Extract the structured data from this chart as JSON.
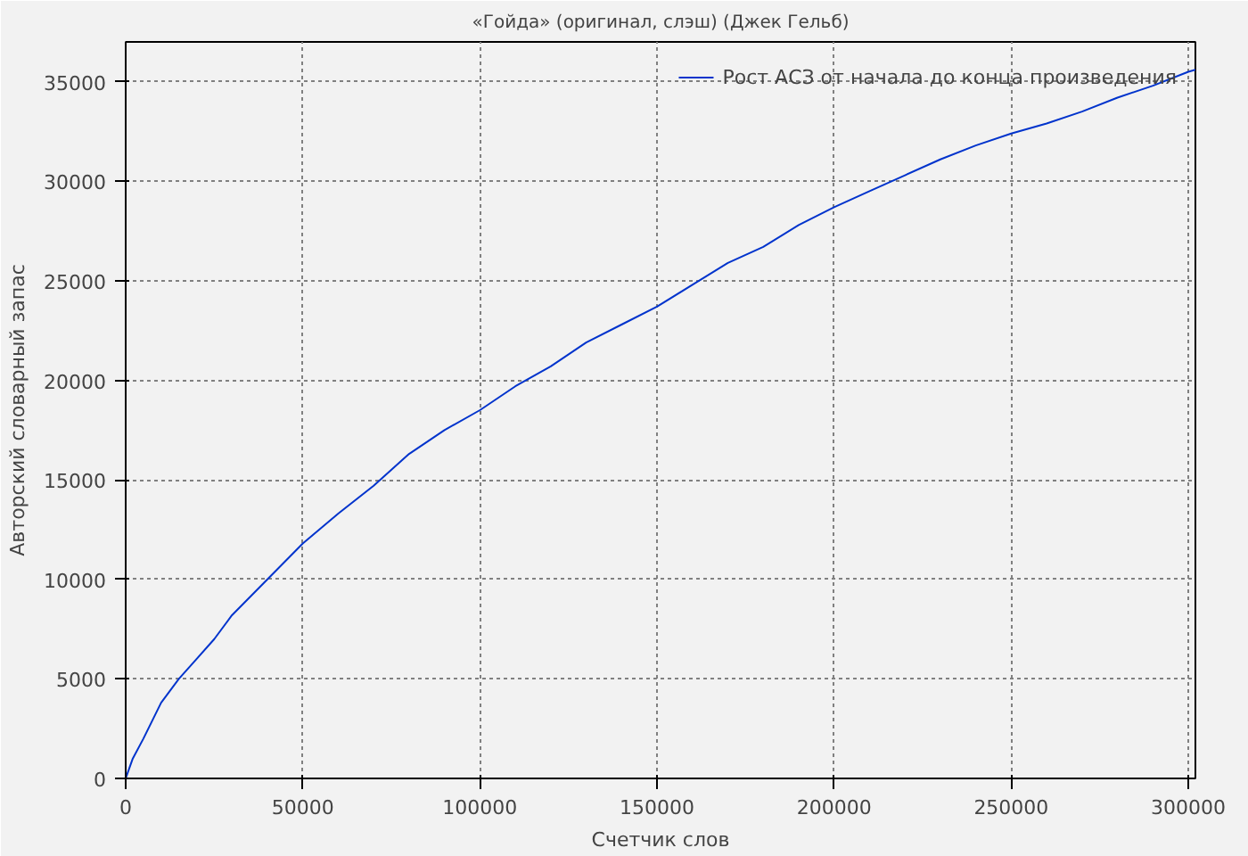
{
  "chart_data": {
    "type": "line",
    "title": "«Гойда» (оригинал, слэш) (Джек Гельб)",
    "xlabel": "Счетчик слов",
    "ylabel": "Авторский словарный запас",
    "x": [
      0,
      2000,
      5000,
      10000,
      15000,
      20000,
      25000,
      30000,
      40000,
      50000,
      60000,
      70000,
      80000,
      90000,
      100000,
      110000,
      120000,
      130000,
      140000,
      150000,
      160000,
      170000,
      180000,
      190000,
      200000,
      210000,
      220000,
      230000,
      240000,
      250000,
      260000,
      270000,
      280000,
      290000,
      300000,
      302000
    ],
    "series": [
      {
        "name": "Рост АСЗ от начала до конца произведения",
        "color": "#0033cc",
        "values": [
          0,
          1000,
          2000,
          3800,
          5000,
          6000,
          7000,
          8200,
          10000,
          11800,
          13300,
          14700,
          16300,
          17500,
          18500,
          19700,
          20700,
          21900,
          22800,
          23700,
          24800,
          25900,
          26700,
          27800,
          28700,
          29500,
          30300,
          31100,
          31800,
          32400,
          32900,
          33500,
          34200,
          34800,
          35500,
          35600
        ]
      }
    ],
    "xlim": [
      0,
      302000
    ],
    "ylim": [
      0,
      37000
    ],
    "xticks": [
      0,
      50000,
      100000,
      150000,
      200000,
      250000,
      300000
    ],
    "yticks": [
      0,
      5000,
      10000,
      15000,
      20000,
      25000,
      30000,
      35000
    ],
    "grid": true,
    "legend": "top right",
    "line_style": "solid"
  }
}
